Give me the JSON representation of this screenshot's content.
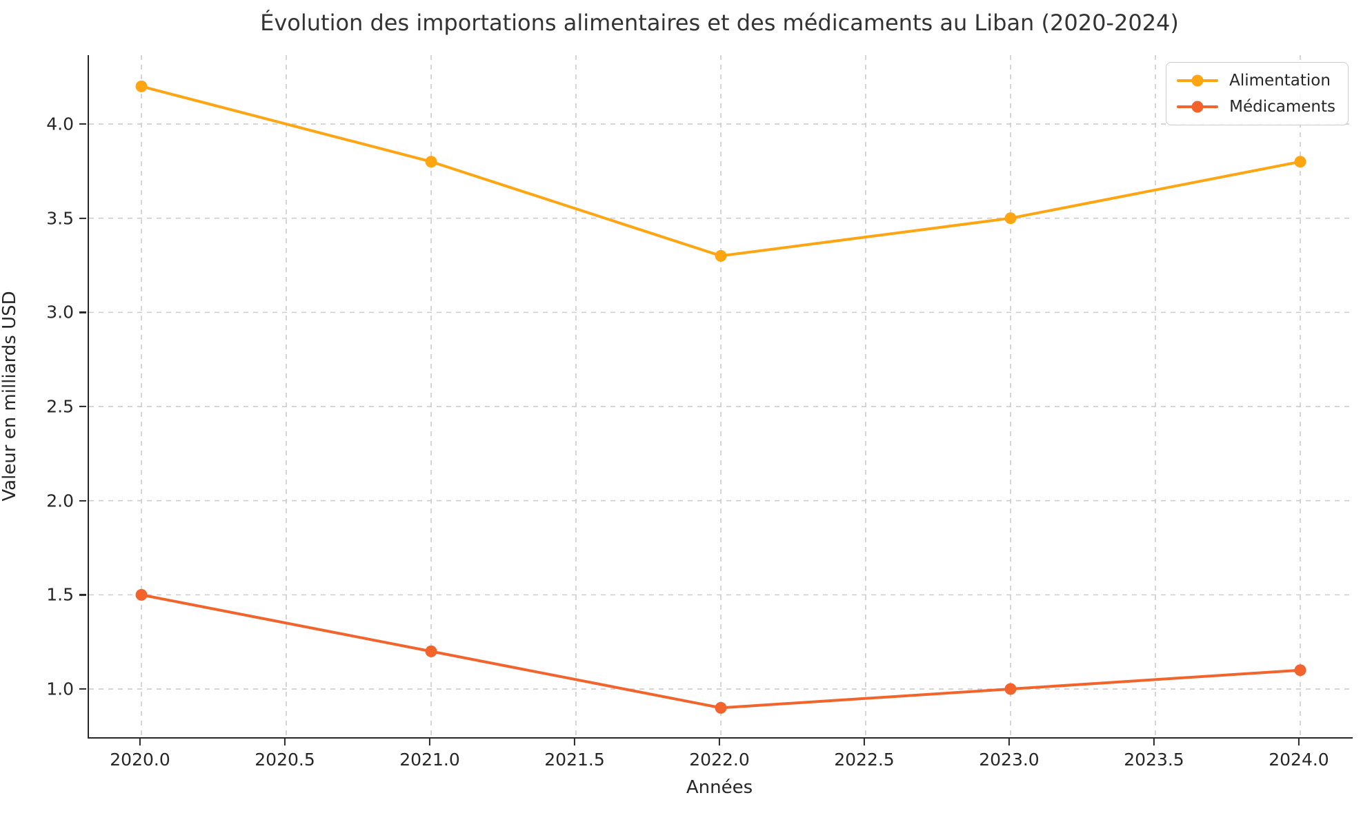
{
  "title": "Évolution des importations alimentaires et des médicaments au Liban (2020-2024)",
  "chart_data": {
    "type": "line",
    "title": "Évolution des importations alimentaires et des médicaments au Liban (2020-2024)",
    "xlabel": "Années",
    "ylabel": "Valeur en milliards USD",
    "x": [
      2020,
      2021,
      2022,
      2023,
      2024
    ],
    "series": [
      {
        "name": "Alimentation",
        "color": "#FFA512",
        "values": [
          4.2,
          3.8,
          3.3,
          3.5,
          3.8
        ]
      },
      {
        "name": "Médicaments",
        "color": "#F2642C",
        "values": [
          1.5,
          1.2,
          0.9,
          1.0,
          1.1
        ]
      }
    ],
    "xlim": [
      2019.819,
      2024.181
    ],
    "ylim": [
      0.744,
      4.366
    ],
    "xticks": {
      "values": [
        2020.0,
        2020.5,
        2021.0,
        2021.5,
        2022.0,
        2022.5,
        2023.0,
        2023.5,
        2024.0
      ],
      "labels": [
        "2020.0",
        "2020.5",
        "2021.0",
        "2021.5",
        "2022.0",
        "2022.5",
        "2023.0",
        "2023.5",
        "2024.0"
      ]
    },
    "yticks": {
      "values": [
        1.0,
        1.5,
        2.0,
        2.5,
        3.0,
        3.5,
        4.0
      ],
      "labels": [
        "1.0",
        "1.5",
        "2.0",
        "2.5",
        "3.0",
        "3.5",
        "4.0"
      ]
    },
    "grid": true,
    "grid_style": "dashed",
    "grid_color": "#cccccc",
    "legend_position": "upper right",
    "line_width": 4,
    "marker": "circle",
    "marker_radius": 8.5
  }
}
